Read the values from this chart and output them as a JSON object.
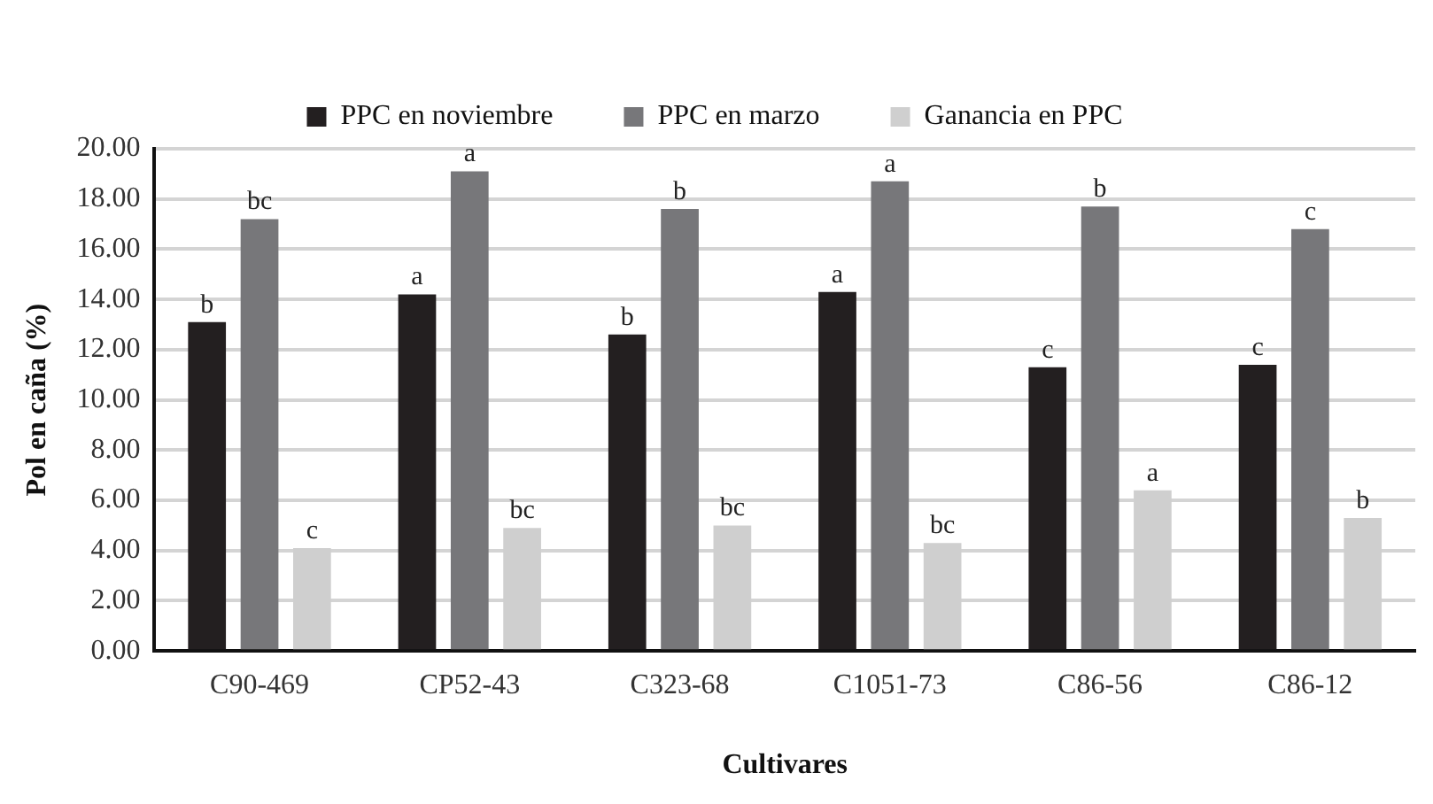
{
  "chart_data": {
    "type": "bar",
    "xlabel": "Cultivares",
    "ylabel": "Pol en caña (%)",
    "categories": [
      "C90-469",
      "CP52-43",
      "C323-68",
      "C1051-73",
      "C86-56",
      "C86-12"
    ],
    "series": [
      {
        "name": "PPC en noviembre",
        "color": "#231f20",
        "values": [
          13.1,
          14.2,
          12.6,
          14.3,
          11.3,
          11.4
        ],
        "value_labels": [
          "b",
          "a",
          "b",
          "a",
          "c",
          "c"
        ]
      },
      {
        "name": "PPC en marzo",
        "color": "#77777a",
        "values": [
          17.2,
          19.1,
          17.6,
          18.7,
          17.7,
          16.8
        ],
        "value_labels": [
          "bc",
          "a",
          "b",
          "a",
          "b",
          "c"
        ]
      },
      {
        "name": "Ganancia en PPC",
        "color": "#cfcfcf",
        "values": [
          4.1,
          4.9,
          5.0,
          4.3,
          6.4,
          5.3
        ],
        "value_labels": [
          "c",
          "bc",
          "bc",
          "bc",
          "a",
          "b"
        ]
      }
    ],
    "ylim": [
      0,
      20
    ],
    "yticks": [
      {
        "value": 0,
        "label": "0.00"
      },
      {
        "value": 2,
        "label": "2.00"
      },
      {
        "value": 4,
        "label": "4.00"
      },
      {
        "value": 6,
        "label": "6.00"
      },
      {
        "value": 8,
        "label": "8.00"
      },
      {
        "value": 10,
        "label": "10.00"
      },
      {
        "value": 12,
        "label": "12.00"
      },
      {
        "value": 14,
        "label": "14.00"
      },
      {
        "value": 16,
        "label": "16.00"
      },
      {
        "value": 18,
        "label": "18.00"
      },
      {
        "value": 20,
        "label": "20.00"
      }
    ],
    "grid": "y",
    "legend": "top"
  }
}
